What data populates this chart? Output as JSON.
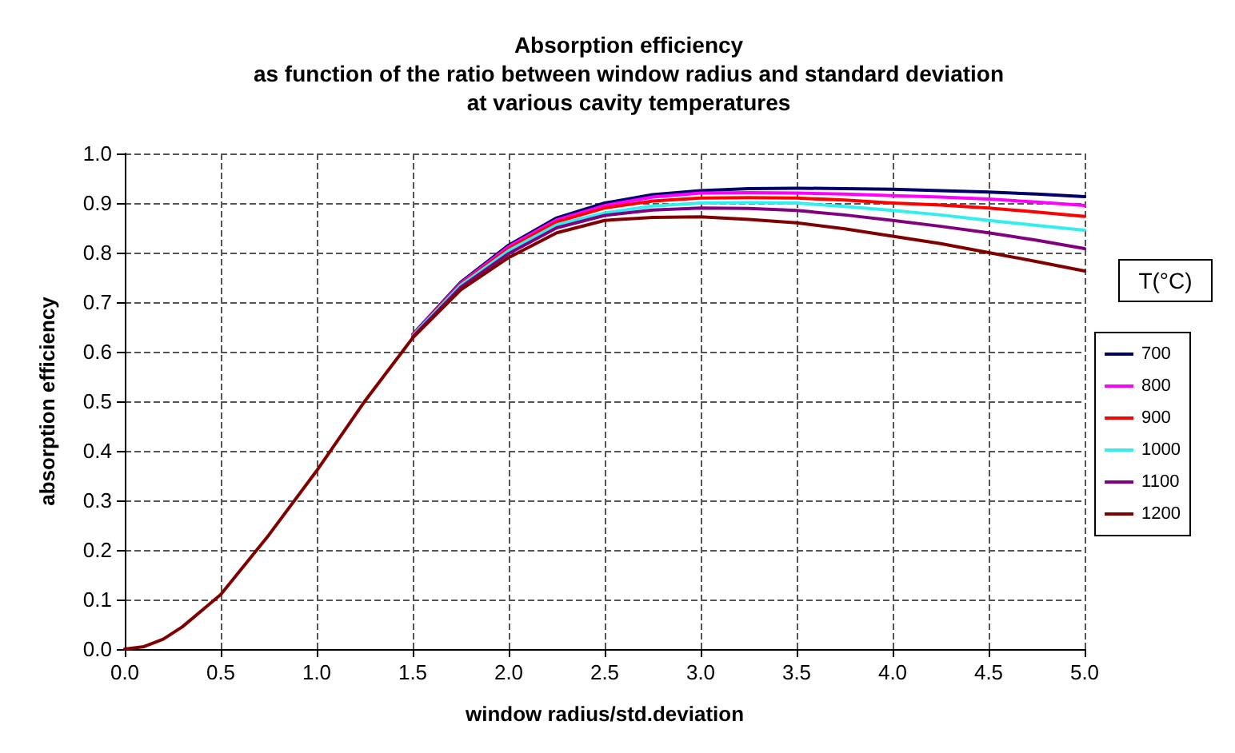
{
  "chart_data": {
    "type": "line",
    "title": "Absorption efficiency\nas function of the ratio between window radius and standard deviation\nat various cavity temperatures",
    "xlabel": "window radius/std.deviation",
    "ylabel": "absorption efficiency",
    "legend_title": "T(°C)",
    "x": [
      0,
      0.1,
      0.2,
      0.3,
      0.5,
      0.75,
      1.0,
      1.25,
      1.5,
      1.75,
      2.0,
      2.25,
      2.5,
      2.75,
      3.0,
      3.25,
      3.5,
      3.75,
      4.0,
      4.25,
      4.5,
      4.75,
      5.0
    ],
    "series": [
      {
        "name": "700",
        "color": "#000066",
        "values": [
          null,
          null,
          null,
          null,
          null,
          null,
          null,
          null,
          0.635,
          0.74,
          0.815,
          0.87,
          0.9,
          0.917,
          0.925,
          0.929,
          0.93,
          0.929,
          0.928,
          0.925,
          0.922,
          0.918,
          0.913
        ]
      },
      {
        "name": "800",
        "color": "#ff00ff",
        "values": [
          null,
          null,
          null,
          null,
          null,
          null,
          null,
          null,
          0.634,
          0.738,
          0.812,
          0.866,
          0.895,
          0.912,
          0.92,
          0.921,
          0.92,
          0.918,
          0.915,
          0.912,
          0.908,
          0.902,
          0.895
        ]
      },
      {
        "name": "900",
        "color": "#ff0000",
        "values": [
          null,
          null,
          null,
          null,
          null,
          null,
          null,
          null,
          0.633,
          0.736,
          0.808,
          0.862,
          0.89,
          0.904,
          0.91,
          0.911,
          0.91,
          0.906,
          0.9,
          0.896,
          0.89,
          0.882,
          0.873
        ]
      },
      {
        "name": "1000",
        "color": "#33eeee",
        "values": [
          null,
          null,
          null,
          null,
          null,
          null,
          null,
          null,
          0.632,
          0.734,
          0.804,
          0.856,
          0.88,
          0.894,
          0.9,
          0.901,
          0.9,
          0.893,
          0.885,
          0.876,
          0.865,
          0.855,
          0.845
        ]
      },
      {
        "name": "1100",
        "color": "#800080",
        "values": [
          null,
          null,
          null,
          null,
          null,
          null,
          null,
          null,
          0.63,
          0.73,
          0.798,
          0.85,
          0.875,
          0.886,
          0.89,
          0.889,
          0.885,
          0.876,
          0.865,
          0.853,
          0.84,
          0.825,
          0.808
        ]
      },
      {
        "name": "1200",
        "color": "#800000",
        "values": [
          0,
          0.005,
          0.02,
          0.045,
          0.11,
          0.23,
          0.36,
          0.5,
          0.628,
          0.725,
          0.79,
          0.84,
          0.865,
          0.871,
          0.872,
          0.867,
          0.86,
          0.848,
          0.833,
          0.818,
          0.8,
          0.782,
          0.763
        ]
      }
    ],
    "xlim": [
      0,
      5
    ],
    "xticks": [
      {
        "value": 0,
        "label": "0.0"
      },
      0.5,
      {
        "value": 1,
        "label": "1.0"
      },
      1.5,
      {
        "value": 2,
        "label": "2.0"
      },
      2.5,
      {
        "value": 3,
        "label": "3.0"
      },
      3.5,
      {
        "value": 4,
        "label": "4.0"
      },
      4.5,
      {
        "value": 5,
        "label": "5.0"
      }
    ],
    "ylim": [
      0,
      1
    ],
    "yticks": [
      {
        "value": 0,
        "label": "0.0"
      },
      0.1,
      0.2,
      0.3,
      0.4,
      0.5,
      0.6,
      0.7,
      0.8,
      0.9,
      {
        "value": 1,
        "label": "1.0"
      }
    ],
    "grid": true,
    "legend": "right",
    "line_style": "solid",
    "marker": "none"
  }
}
